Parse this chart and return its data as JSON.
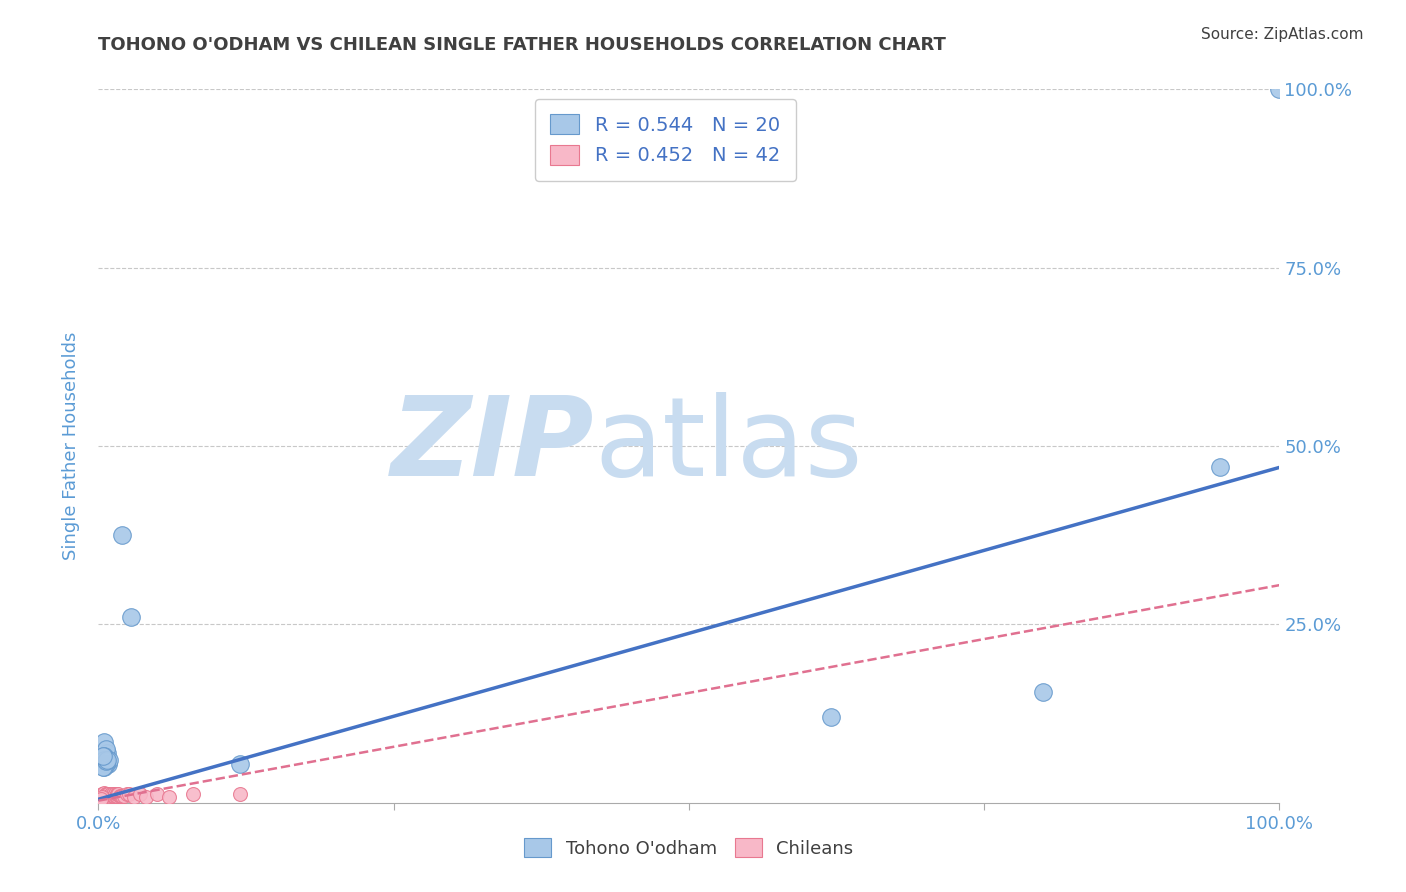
{
  "title": "TOHONO O'ODHAM VS CHILEAN SINGLE FATHER HOUSEHOLDS CORRELATION CHART",
  "source": "Source: ZipAtlas.com",
  "ylabel": "Single Father Households",
  "xlim": [
    0,
    1
  ],
  "ylim": [
    0,
    1
  ],
  "xticks": [
    0,
    0.25,
    0.5,
    0.75,
    1.0
  ],
  "xticklabels": [
    "0.0%",
    "",
    "",
    "",
    "100.0%"
  ],
  "yticks": [
    0.0,
    0.25,
    0.5,
    0.75,
    1.0
  ],
  "yticklabels_right": [
    "",
    "25.0%",
    "50.0%",
    "75.0%",
    "100.0%"
  ],
  "blue_color": "#A8C8E8",
  "blue_edge_color": "#6699CC",
  "pink_color": "#F8B8C8",
  "pink_edge_color": "#E87890",
  "blue_line_color": "#4472C4",
  "pink_line_color": "#E07090",
  "R_blue": 0.544,
  "N_blue": 20,
  "R_pink": 0.452,
  "N_pink": 42,
  "watermark_zip": "ZIP",
  "watermark_atlas": "atlas",
  "watermark_color": "#C8DCF0",
  "title_color": "#404040",
  "axis_label_color": "#5B9BD5",
  "tick_label_color": "#5B9BD5",
  "grid_color": "#C8C8C8",
  "legend_label_blue": "Tohono O'odham",
  "legend_label_pink": "Chileans",
  "blue_scatter": [
    [
      0.02,
      0.375
    ],
    [
      0.028,
      0.26
    ],
    [
      0.005,
      0.085
    ],
    [
      0.007,
      0.07
    ],
    [
      0.006,
      0.075
    ],
    [
      0.005,
      0.065
    ],
    [
      0.008,
      0.055
    ],
    [
      0.009,
      0.06
    ],
    [
      0.006,
      0.055
    ],
    [
      0.005,
      0.05
    ],
    [
      0.12,
      0.055
    ],
    [
      0.005,
      0.06
    ],
    [
      0.004,
      0.05
    ],
    [
      0.006,
      0.058
    ],
    [
      0.007,
      0.06
    ],
    [
      0.62,
      0.12
    ],
    [
      0.8,
      0.155
    ],
    [
      0.95,
      0.47
    ],
    [
      1.0,
      1.0
    ],
    [
      0.004,
      0.065
    ]
  ],
  "pink_scatter": [
    [
      0.002,
      0.01
    ],
    [
      0.003,
      0.01
    ],
    [
      0.002,
      0.008
    ],
    [
      0.003,
      0.012
    ],
    [
      0.004,
      0.008
    ],
    [
      0.004,
      0.012
    ],
    [
      0.005,
      0.01
    ],
    [
      0.005,
      0.014
    ],
    [
      0.006,
      0.008
    ],
    [
      0.006,
      0.012
    ],
    [
      0.007,
      0.008
    ],
    [
      0.007,
      0.012
    ],
    [
      0.008,
      0.008
    ],
    [
      0.008,
      0.012
    ],
    [
      0.009,
      0.01
    ],
    [
      0.009,
      0.008
    ],
    [
      0.01,
      0.008
    ],
    [
      0.01,
      0.01
    ],
    [
      0.011,
      0.012
    ],
    [
      0.012,
      0.01
    ],
    [
      0.012,
      0.012
    ],
    [
      0.013,
      0.01
    ],
    [
      0.014,
      0.012
    ],
    [
      0.015,
      0.01
    ],
    [
      0.016,
      0.01
    ],
    [
      0.016,
      0.012
    ],
    [
      0.017,
      0.012
    ],
    [
      0.018,
      0.01
    ],
    [
      0.019,
      0.01
    ],
    [
      0.02,
      0.01
    ],
    [
      0.022,
      0.01
    ],
    [
      0.024,
      0.012
    ],
    [
      0.026,
      0.012
    ],
    [
      0.03,
      0.008
    ],
    [
      0.035,
      0.012
    ],
    [
      0.04,
      0.008
    ],
    [
      0.05,
      0.012
    ],
    [
      0.06,
      0.008
    ],
    [
      0.08,
      0.012
    ],
    [
      0.12,
      0.012
    ],
    [
      0.003,
      0.008
    ],
    [
      0.002,
      0.006
    ]
  ],
  "blue_line_x": [
    0,
    1.0
  ],
  "blue_line_y": [
    0.005,
    0.47
  ],
  "pink_line_x": [
    0,
    1.0
  ],
  "pink_line_y": [
    0.003,
    0.305
  ],
  "figsize": [
    14.06,
    8.92
  ],
  "dpi": 100
}
